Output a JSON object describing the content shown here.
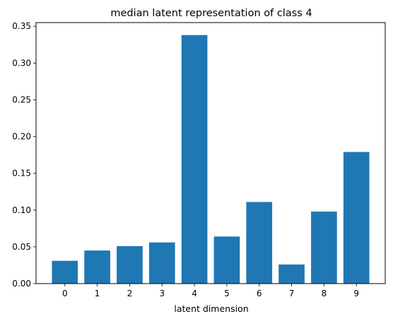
{
  "chart_data": {
    "type": "bar",
    "title": "median latent representation of class 4",
    "xlabel": "latent dimension",
    "ylabel": "",
    "categories": [
      "0",
      "1",
      "2",
      "3",
      "4",
      "5",
      "6",
      "7",
      "8",
      "9"
    ],
    "values": [
      0.031,
      0.045,
      0.051,
      0.056,
      0.338,
      0.064,
      0.111,
      0.026,
      0.098,
      0.179
    ],
    "ylim": [
      0,
      0.355
    ],
    "yticks": [
      0.0,
      0.05,
      0.1,
      0.15,
      0.2,
      0.25,
      0.3,
      0.35
    ],
    "ytick_labels": [
      "0.00",
      "0.05",
      "0.10",
      "0.15",
      "0.20",
      "0.25",
      "0.30",
      "0.35"
    ],
    "bar_color": "#1f77b4",
    "grid": false,
    "legend": "none"
  }
}
